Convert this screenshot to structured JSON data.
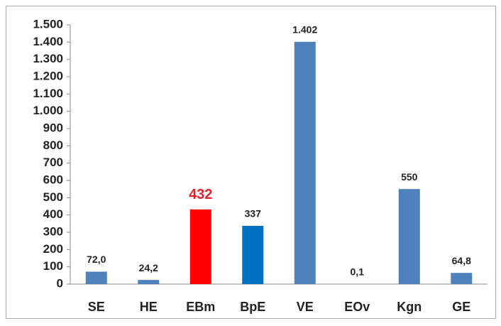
{
  "chart_data": {
    "type": "bar",
    "categories": [
      "SE",
      "HE",
      "EBm",
      "BpE",
      "VE",
      "EOv",
      "Kgn",
      "GE"
    ],
    "values": [
      72,
      24.2,
      432,
      337,
      1402,
      0.1,
      550,
      64.8
    ],
    "value_labels": [
      "72,0",
      "24,2",
      "432",
      "337",
      "1.402",
      "0,1",
      "550",
      "64,8"
    ],
    "colors": [
      "#4f81bd",
      "#4f81bd",
      "#ff0000",
      "#0070c0",
      "#4f81bd",
      "#4f81bd",
      "#4f81bd",
      "#4f81bd"
    ],
    "value_label_colors": [
      "#222222",
      "#222222",
      "#e8202a",
      "#222222",
      "#222222",
      "#222222",
      "#222222",
      "#222222"
    ],
    "ylim": [
      0,
      1500
    ],
    "yticks": [
      0,
      100,
      200,
      300,
      400,
      500,
      600,
      700,
      800,
      900,
      {
        "value": 1000,
        "label": "1.000"
      },
      {
        "value": 1100,
        "label": "1.100"
      },
      {
        "value": 1200,
        "label": "1.200"
      },
      {
        "value": 1300,
        "label": "1.300"
      },
      {
        "value": 1400,
        "label": "1.400"
      },
      {
        "value": 1500,
        "label": "1.500"
      }
    ],
    "grid": false
  }
}
